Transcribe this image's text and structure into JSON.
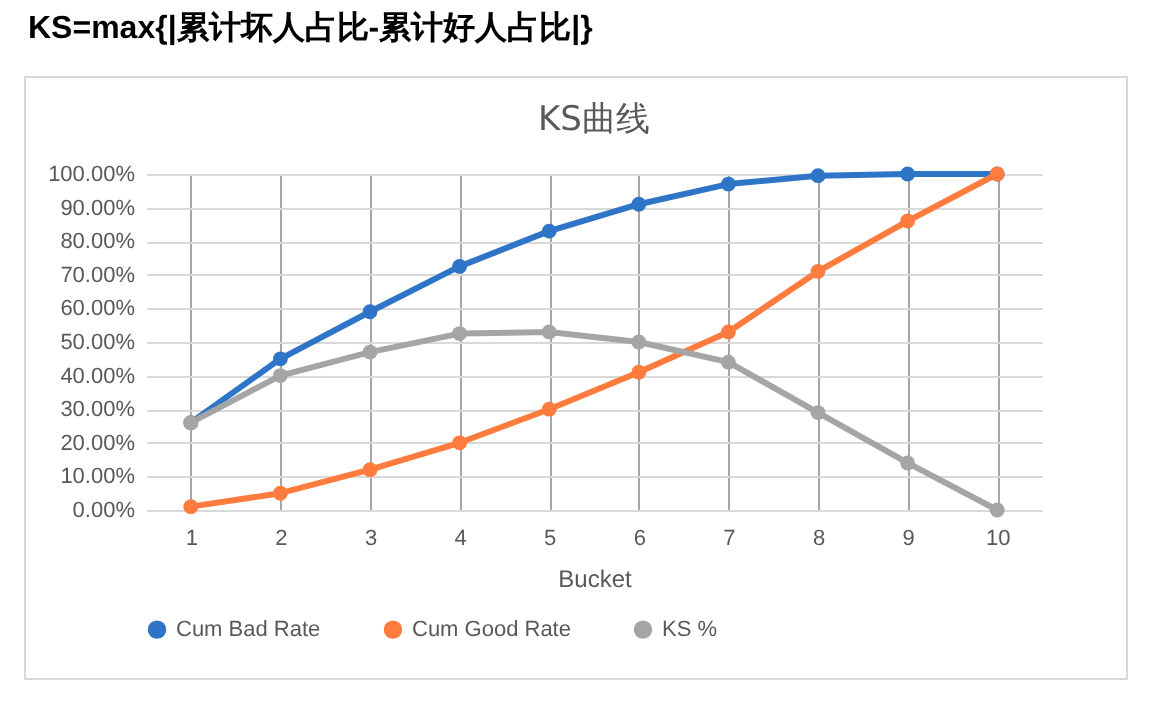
{
  "chart_data": {
    "type": "line",
    "title": "KS曲线",
    "xlabel": "Bucket",
    "annotations": [
      "KS=max{|累计坏人占比-累计好人占比|}"
    ],
    "categories": [
      "1",
      "2",
      "3",
      "4",
      "5",
      "6",
      "7",
      "8",
      "9",
      "10"
    ],
    "series": [
      {
        "name": "Cum Bad Rate",
        "color": "#2e75c8",
        "values": [
          26,
          45,
          59,
          72.5,
          83,
          91,
          97,
          99.5,
          100,
          100
        ]
      },
      {
        "name": "Cum Good Rate",
        "color": "#ff7c3e",
        "values": [
          1,
          5,
          12,
          20,
          30,
          41,
          53,
          71,
          86,
          100
        ]
      },
      {
        "name": "KS %",
        "color": "#a5a5a5",
        "values": [
          26,
          40,
          47,
          52.5,
          53,
          50,
          44,
          29,
          14,
          0
        ]
      }
    ],
    "ylim": [
      0,
      100
    ],
    "yticks": [
      {
        "value": 0,
        "label": "0.00%"
      },
      {
        "value": 10,
        "label": "10.00%"
      },
      {
        "value": 20,
        "label": "20.00%"
      },
      {
        "value": 30,
        "label": "30.00%"
      },
      {
        "value": 40,
        "label": "40.00%"
      },
      {
        "value": 50,
        "label": "50.00%"
      },
      {
        "value": 60,
        "label": "60.00%"
      },
      {
        "value": 70,
        "label": "70.00%"
      },
      {
        "value": 80,
        "label": "80.00%"
      },
      {
        "value": 90,
        "label": "90.00%"
      },
      {
        "value": 100,
        "label": "100.00%"
      }
    ],
    "grid": true,
    "legend": "bottom",
    "marker": "circle",
    "line_style": "solid"
  }
}
